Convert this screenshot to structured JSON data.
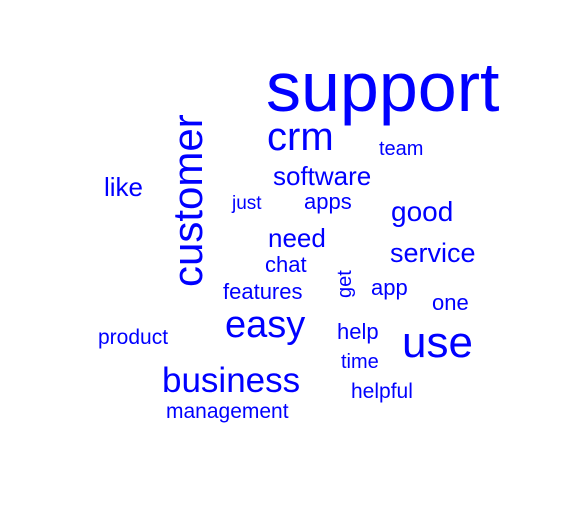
{
  "word_cloud": {
    "words": {
      "support": "support",
      "customer": "customer",
      "crm": "crm",
      "team": "team",
      "like": "like",
      "software": "software",
      "just": "just",
      "apps": "apps",
      "good": "good",
      "need": "need",
      "service": "service",
      "chat": "chat",
      "get": "get",
      "app": "app",
      "features": "features",
      "one": "one",
      "easy": "easy",
      "help": "help",
      "product": "product",
      "use": "use",
      "time": "time",
      "business": "business",
      "helpful": "helpful",
      "management": "management"
    },
    "text_color": "#0000ff",
    "background_color": "#ffffff"
  }
}
